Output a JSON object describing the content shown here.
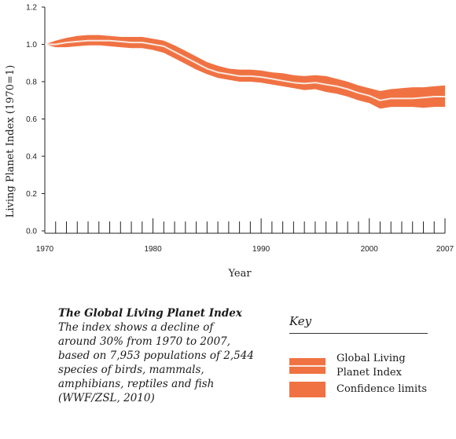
{
  "chart_data": {
    "type": "area",
    "ylabel": "Living Planet Index (1970=1)",
    "xlabel": "Year",
    "xlim": [
      1970,
      2007
    ],
    "ylim": [
      0,
      1.2
    ],
    "x_ticks": [
      "1970",
      "1980",
      "1990",
      "2000",
      "2007"
    ],
    "y_ticks": [
      "0.0",
      "0.2",
      "0.4",
      "0.6",
      "0.8",
      "1.0",
      "1.2"
    ],
    "grid": false,
    "colors": {
      "band": "#f07243",
      "index_line": "#f7e8e0",
      "axis": "#222222"
    },
    "series": [
      {
        "name": "Global Living Planet Index",
        "x": [
          1970,
          1971,
          1972,
          1973,
          1974,
          1975,
          1976,
          1977,
          1978,
          1979,
          1980,
          1981,
          1982,
          1983,
          1984,
          1985,
          1986,
          1987,
          1988,
          1989,
          1990,
          1991,
          1992,
          1993,
          1994,
          1995,
          1996,
          1997,
          1998,
          1999,
          2000,
          2001,
          2002,
          2003,
          2004,
          2005,
          2006,
          2007
        ],
        "y": [
          1.0,
          1.0,
          1.01,
          1.015,
          1.02,
          1.02,
          1.02,
          1.015,
          1.01,
          1.01,
          1.0,
          0.99,
          0.96,
          0.93,
          0.9,
          0.87,
          0.85,
          0.84,
          0.83,
          0.83,
          0.825,
          0.815,
          0.805,
          0.795,
          0.79,
          0.795,
          0.785,
          0.775,
          0.76,
          0.74,
          0.725,
          0.7,
          0.71,
          0.71,
          0.71,
          0.715,
          0.72,
          0.72
        ]
      },
      {
        "name": "Confidence limits",
        "x": [
          1970,
          1971,
          1972,
          1973,
          1974,
          1975,
          1976,
          1977,
          1978,
          1979,
          1980,
          1981,
          1982,
          1983,
          1984,
          1985,
          1986,
          1987,
          1988,
          1989,
          1990,
          1991,
          1992,
          1993,
          1994,
          1995,
          1996,
          1997,
          1998,
          1999,
          2000,
          2001,
          2002,
          2003,
          2004,
          2005,
          2006,
          2007
        ],
        "upper": [
          1.0,
          1.02,
          1.035,
          1.045,
          1.05,
          1.05,
          1.045,
          1.04,
          1.04,
          1.04,
          1.03,
          1.02,
          0.995,
          0.965,
          0.935,
          0.905,
          0.885,
          0.87,
          0.865,
          0.865,
          0.86,
          0.85,
          0.845,
          0.835,
          0.83,
          0.835,
          0.83,
          0.815,
          0.8,
          0.78,
          0.765,
          0.75,
          0.76,
          0.765,
          0.77,
          0.77,
          0.775,
          0.78
        ],
        "lower": [
          1.0,
          0.985,
          0.985,
          0.99,
          0.995,
          0.995,
          0.99,
          0.985,
          0.98,
          0.98,
          0.97,
          0.955,
          0.925,
          0.895,
          0.865,
          0.84,
          0.82,
          0.81,
          0.8,
          0.8,
          0.795,
          0.785,
          0.775,
          0.765,
          0.755,
          0.76,
          0.745,
          0.735,
          0.72,
          0.7,
          0.685,
          0.655,
          0.665,
          0.665,
          0.665,
          0.66,
          0.665,
          0.665
        ]
      }
    ]
  },
  "caption": {
    "title": "The Global Living Planet Index",
    "body": "The index shows a decline of around 30% from 1970 to 2007, based on 7,953 populations of 2,544 species of birds, mammals, amphibians, reptiles and fish (WWF/ZSL, 2010)"
  },
  "key": {
    "title": "Key",
    "items": [
      {
        "label": "Global Living Planet Index",
        "icon": "band-with-line-swatch"
      },
      {
        "label": "Confidence limits",
        "icon": "band-swatch"
      }
    ]
  }
}
